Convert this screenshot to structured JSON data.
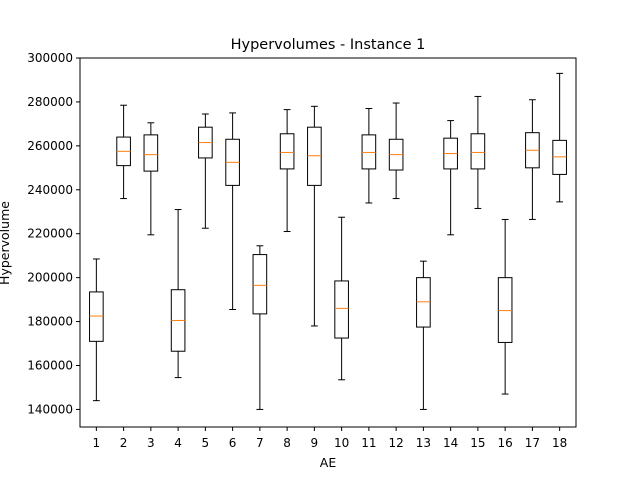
{
  "chart_data": {
    "type": "box",
    "title": "Hypervolumes - Instance 1",
    "xlabel": "AE",
    "ylabel": "Hypervolume",
    "ylim": [
      132000,
      300000
    ],
    "yticks": [
      140000,
      160000,
      180000,
      200000,
      220000,
      240000,
      260000,
      280000,
      300000
    ],
    "categories": [
      "1",
      "2",
      "3",
      "4",
      "5",
      "6",
      "7",
      "8",
      "9",
      "10",
      "11",
      "12",
      "13",
      "14",
      "15",
      "16",
      "17",
      "18"
    ],
    "grid": false,
    "colors": {
      "box": "#000000",
      "median": "#ff7f0e"
    },
    "boxes": [
      {
        "label": "1",
        "min": 144000,
        "q1": 171000,
        "median": 182500,
        "q3": 193500,
        "max": 208500
      },
      {
        "label": "2",
        "min": 236000,
        "q1": 251000,
        "median": 257500,
        "q3": 264000,
        "max": 278500
      },
      {
        "label": "3",
        "min": 219500,
        "q1": 248500,
        "median": 256000,
        "q3": 265000,
        "max": 270500
      },
      {
        "label": "4",
        "min": 154500,
        "q1": 166500,
        "median": 180500,
        "q3": 194500,
        "max": 231000
      },
      {
        "label": "5",
        "min": 222500,
        "q1": 254500,
        "median": 261500,
        "q3": 268500,
        "max": 274500
      },
      {
        "label": "6",
        "min": 185500,
        "q1": 242000,
        "median": 252500,
        "q3": 263000,
        "max": 275000
      },
      {
        "label": "7",
        "min": 140000,
        "q1": 183500,
        "median": 196500,
        "q3": 210500,
        "max": 214500
      },
      {
        "label": "8",
        "min": 221000,
        "q1": 249500,
        "median": 257000,
        "q3": 265500,
        "max": 276500
      },
      {
        "label": "9",
        "min": 178000,
        "q1": 242000,
        "median": 255500,
        "q3": 268500,
        "max": 278000
      },
      {
        "label": "10",
        "min": 153500,
        "q1": 172500,
        "median": 186000,
        "q3": 198500,
        "max": 227500
      },
      {
        "label": "11",
        "min": 234000,
        "q1": 249500,
        "median": 257000,
        "q3": 265000,
        "max": 277000
      },
      {
        "label": "12",
        "min": 236000,
        "q1": 249000,
        "median": 256000,
        "q3": 263000,
        "max": 279500
      },
      {
        "label": "13",
        "min": 140000,
        "q1": 177500,
        "median": 189000,
        "q3": 200000,
        "max": 207500
      },
      {
        "label": "14",
        "min": 219500,
        "q1": 249500,
        "median": 256500,
        "q3": 263500,
        "max": 271500
      },
      {
        "label": "15",
        "min": 231500,
        "q1": 249500,
        "median": 257000,
        "q3": 265500,
        "max": 282500
      },
      {
        "label": "16",
        "min": 147000,
        "q1": 170500,
        "median": 185000,
        "q3": 200000,
        "max": 226500
      },
      {
        "label": "17",
        "min": 226500,
        "q1": 250000,
        "median": 258000,
        "q3": 266000,
        "max": 281000
      },
      {
        "label": "18",
        "min": 234500,
        "q1": 247000,
        "median": 255000,
        "q3": 262500,
        "max": 293000
      }
    ]
  }
}
